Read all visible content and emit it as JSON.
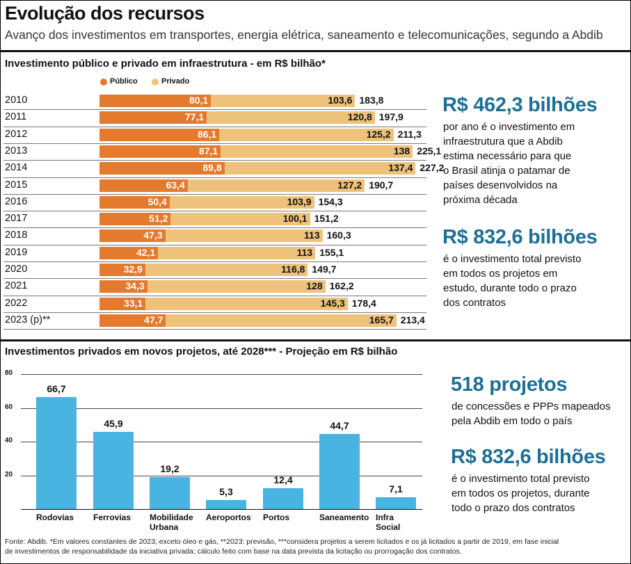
{
  "header": {
    "title": "Evolução dos recursos",
    "subtitle": "Avanço dos investimentos em transportes, energia elétrica, saneamento e telecomunicações, segundo a Abdib"
  },
  "colors": {
    "publico": "#e47a2e",
    "privado": "#eec27a",
    "accent": "#1d6f95",
    "bar": "#49b3e1"
  },
  "chart_data": [
    {
      "type": "bar",
      "stacked": true,
      "orientation": "horizontal",
      "title": "Investimento público e privado em infraestrutura - em R$ bilhão*",
      "categories": [
        "2010",
        "2011",
        "2012",
        "2013",
        "2014",
        "2015",
        "2016",
        "2017",
        "2018",
        "2019",
        "2020",
        "2021",
        "2022",
        "2023 (p)**"
      ],
      "series": [
        {
          "name": "Público",
          "values": [
            80.1,
            77.1,
            86.1,
            87.1,
            89.8,
            63.4,
            50.4,
            51.2,
            47.3,
            42.1,
            32.9,
            34.3,
            33.1,
            47.7
          ],
          "labels": [
            "80,1",
            "77,1",
            "86,1",
            "87,1",
            "89,8",
            "63,4",
            "50,4",
            "51,2",
            "47,3",
            "42,1",
            "32,9",
            "34,3",
            "33,1",
            "47,7"
          ]
        },
        {
          "name": "Privado",
          "values": [
            103.6,
            120.8,
            125.2,
            138,
            137.4,
            127.2,
            103.9,
            100.1,
            113,
            113,
            116.8,
            128,
            145.3,
            165.7
          ],
          "labels": [
            "103,6",
            "120,8",
            "125,2",
            "138",
            "137,4",
            "127,2",
            "103,9",
            "100,1",
            "113",
            "113",
            "116,8",
            "128",
            "145,3",
            "165,7"
          ]
        }
      ],
      "totals": [
        "183,8",
        "197,9",
        "211,3",
        "225,1",
        "227,2",
        "190,7",
        "154,3",
        "151,2",
        "160,3",
        "155,1",
        "149,7",
        "162,2",
        "178,4",
        "213,4"
      ],
      "legend": "top-left"
    },
    {
      "type": "bar",
      "title": "Investimentos privados em novos projetos, até 2028*** - Projeção em R$ bilhão",
      "categories": [
        [
          "Rodovias"
        ],
        [
          "Ferrovias"
        ],
        [
          "Mobilidade",
          "Urbana"
        ],
        [
          "Aeroportos"
        ],
        [
          "Portos"
        ],
        [
          "Saneamento"
        ],
        [
          "Infra",
          "Social"
        ]
      ],
      "values": [
        66.7,
        45.9,
        19.2,
        5.3,
        12.4,
        44.7,
        7.1
      ],
      "labels": [
        "66,7",
        "45,9",
        "19,2",
        "5,3",
        "12,4",
        "44,7",
        "7,1"
      ],
      "ylim": [
        0,
        80
      ],
      "yticks": [
        "20",
        "40",
        "60",
        "80"
      ],
      "grid": true
    }
  ],
  "side1": {
    "big1": "R$ 462,3 bilhões",
    "desc1": [
      "por ano é o investimento em",
      "infraestrutura que a Abdib",
      "estima necessário para que",
      "o Brasil atinja o patamar de",
      "países desenvolvidos na",
      "próxima década"
    ],
    "big2": "R$ 832,6 bilhões",
    "desc2": [
      "é o investimento total previsto",
      "em todos os projetos em",
      "estudo, durante todo o prazo",
      "dos contratos"
    ]
  },
  "side2": {
    "big1": "518 projetos",
    "desc1": [
      "de concessões e PPPs mapeados",
      "pela Abdib em todo o país"
    ],
    "big2": "R$ 832,6 bilhões",
    "desc2": [
      "é o investimento total previsto",
      "em todos os projetos, durante",
      "todo o prazo dos contratos"
    ]
  },
  "footer": {
    "line1": "Fonte: Abdib. *Em valores constantes de 2023; exceto óleo e gás, **2023: previsão, ***considera projetos a serem licitados e os já licitados a partir de 2019, em fase inicial",
    "line2": "de investimentos de responsabilidade da iniciativa privada; cálculo feito com base na data prevista da licitação ou prorrogação dos contratos."
  }
}
